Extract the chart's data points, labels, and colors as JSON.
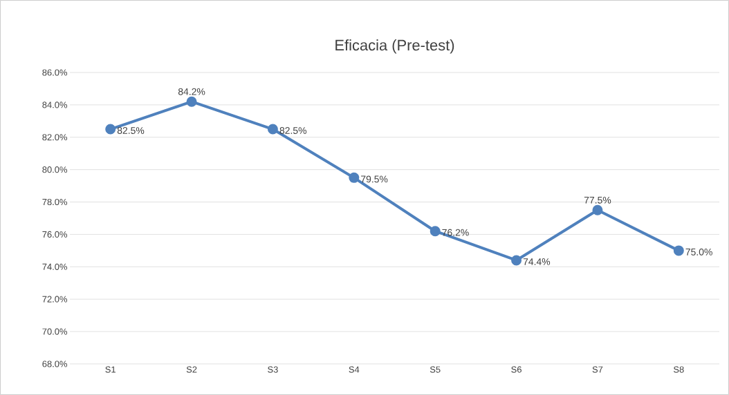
{
  "chart_data": {
    "type": "line",
    "title": "Eficacia (Pre-test)",
    "categories": [
      "S1",
      "S2",
      "S3",
      "S4",
      "S5",
      "S6",
      "S7",
      "S8"
    ],
    "series": [
      {
        "color": "#4f81bd",
        "values": [
          82.5,
          84.2,
          82.5,
          79.5,
          76.2,
          74.4,
          77.5,
          75.0
        ],
        "value_labels": [
          "82.5%",
          "84.2%",
          "82.5%",
          "79.5%",
          "76.2%",
          "74.4%",
          "77.5%",
          "75.0%"
        ]
      }
    ],
    "ylim": [
      68,
      86
    ],
    "yticks": [
      {
        "value": 68,
        "label": "68.0%"
      },
      {
        "value": 70,
        "label": "70.0%"
      },
      {
        "value": 72,
        "label": "72.0%"
      },
      {
        "value": 74,
        "label": "74.0%"
      },
      {
        "value": 76,
        "label": "76.0%"
      },
      {
        "value": 78,
        "label": "78.0%"
      },
      {
        "value": 80,
        "label": "80.0%"
      },
      {
        "value": 82,
        "label": "82.0%"
      },
      {
        "value": 84,
        "label": "84.0%"
      },
      {
        "value": 86,
        "label": "86.0%"
      }
    ],
    "grid": "y",
    "marker": "circle",
    "line_style": "solid"
  }
}
